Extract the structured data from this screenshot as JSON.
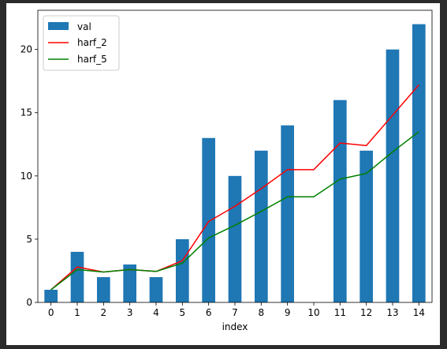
{
  "chart_data": {
    "type": "bar",
    "xlabel": "index",
    "ylabel": "",
    "ylim": [
      0,
      23.1
    ],
    "yticks": [
      0,
      5,
      10,
      15,
      20
    ],
    "grid": false,
    "legend_position": "top-left",
    "categories": [
      "0",
      "1",
      "2",
      "3",
      "4",
      "5",
      "6",
      "7",
      "8",
      "9",
      "10",
      "11",
      "12",
      "13",
      "14"
    ],
    "bar_series": {
      "name": "val",
      "color": "#1f77b4",
      "values": [
        1,
        4,
        2,
        3,
        2,
        5,
        13,
        10,
        12,
        14,
        0,
        16,
        12,
        20,
        22
      ]
    },
    "line_series": [
      {
        "name": "harf_2",
        "color": "#ff0000",
        "values": [
          1,
          2.8,
          2.4,
          2.6,
          2.45,
          3.3,
          6.4,
          7.6,
          9.0,
          10.5,
          10.5,
          12.6,
          12.4,
          14.8,
          17.2
        ]
      },
      {
        "name": "harf_5",
        "color": "#008000",
        "values": [
          1,
          2.6,
          2.4,
          2.6,
          2.45,
          3.1,
          5.1,
          6.1,
          7.2,
          8.35,
          8.35,
          9.75,
          10.2,
          11.9,
          13.5
        ]
      }
    ]
  }
}
